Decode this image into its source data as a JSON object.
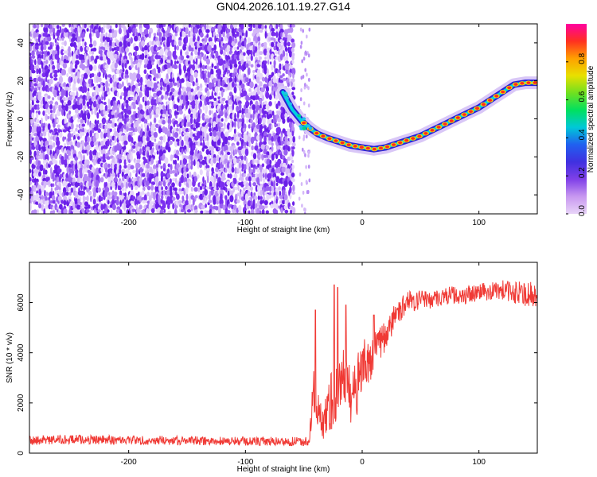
{
  "title": "GN04.2026.101.19.27.G14",
  "colors": {
    "snr_line": "#f03a35",
    "spectrogram_noise": "#7b2ff0",
    "axis": "#000000",
    "colorbar_stops": [
      "#e8d4f8",
      "#c898f0",
      "#8040e8",
      "#4030e0",
      "#2060f0",
      "#00c8d8",
      "#00e060",
      "#70e020",
      "#e8e000",
      "#ffa000",
      "#ff3020",
      "#ff00a0"
    ]
  },
  "chart_data": [
    {
      "type": "heatmap",
      "name": "spectrogram",
      "xlabel": "Height of straight line (km)",
      "ylabel": "Frequency (Hz)",
      "xlim": [
        -285,
        150
      ],
      "ylim": [
        -50,
        50
      ],
      "xticks": [
        -200,
        -100,
        0,
        100
      ],
      "xtick_labels": [
        "-200",
        "-100",
        "0",
        "100"
      ],
      "yticks": [
        -40,
        -20,
        0,
        20,
        40
      ],
      "ytick_labels": [
        "-40",
        "-20",
        "0",
        "20",
        "40"
      ],
      "noise_region": {
        "x_from": -285,
        "x_to": -58,
        "x_sparse_to": -45
      },
      "tone_track": {
        "x": [
          -68,
          -60,
          -52,
          -45,
          -38,
          -30,
          -20,
          -10,
          0,
          10,
          20,
          30,
          40,
          50,
          60,
          70,
          80,
          90,
          100,
          110,
          120,
          130,
          140,
          150
        ],
        "y": [
          14,
          5,
          -1,
          -5,
          -8,
          -10,
          -12,
          -14,
          -15,
          -16,
          -15,
          -13,
          -11,
          -9,
          -6,
          -3,
          0,
          3,
          6,
          10,
          14,
          18,
          19,
          19
        ]
      },
      "colorbar": {
        "label": "Normalized spectral amplitude",
        "range": [
          0,
          1
        ],
        "ticks": [
          0.0,
          0.2,
          0.4,
          0.6,
          0.8
        ],
        "tick_labels": [
          "0.0",
          "0.2",
          "0.4",
          "0.6",
          "0.8"
        ]
      }
    },
    {
      "type": "line",
      "name": "snr",
      "xlabel": "Height of straight line (km)",
      "ylabel": "SNR (10 * v/v)",
      "xlim": [
        -285,
        150
      ],
      "ylim": [
        0,
        7600
      ],
      "xticks": [
        -200,
        -100,
        0,
        100
      ],
      "xtick_labels": [
        "-200",
        "-100",
        "0",
        "100"
      ],
      "yticks": [
        0,
        2000,
        4000,
        6000
      ],
      "ytick_labels": [
        "0",
        "2000",
        "4000",
        "6000"
      ],
      "series": [
        {
          "name": "SNR",
          "x": [
            -285,
            -250,
            -200,
            -150,
            -100,
            -60,
            -45,
            -42,
            -38,
            -35,
            -30,
            -25,
            -20,
            -15,
            -10,
            -5,
            0,
            5,
            10,
            20,
            30,
            40,
            50,
            60,
            70,
            80,
            90,
            100,
            110,
            120,
            130,
            140,
            150
          ],
          "y": [
            500,
            550,
            520,
            500,
            470,
            460,
            480,
            2600,
            1500,
            1300,
            1500,
            2300,
            3200,
            2800,
            2200,
            2700,
            3300,
            3600,
            4000,
            4700,
            5600,
            6050,
            6100,
            6150,
            6250,
            6300,
            6300,
            6400,
            6450,
            6500,
            6400,
            6350,
            6300
          ],
          "noise_amp": [
            180,
            180,
            180,
            180,
            180,
            180,
            200,
            1400,
            900,
            700,
            1000,
            1400,
            1500,
            1300,
            1200,
            1300,
            1200,
            1000,
            800,
            600,
            500,
            400,
            400,
            380,
            350,
            380,
            350,
            380,
            350,
            400,
            450,
            500,
            500
          ],
          "spikes": [
            {
              "x": -40,
              "y": 5700
            },
            {
              "x": -24,
              "y": 6700
            },
            {
              "x": -21,
              "y": 6600
            },
            {
              "x": -14,
              "y": 5900
            },
            {
              "x": 10,
              "y": 5500
            }
          ]
        }
      ]
    }
  ]
}
